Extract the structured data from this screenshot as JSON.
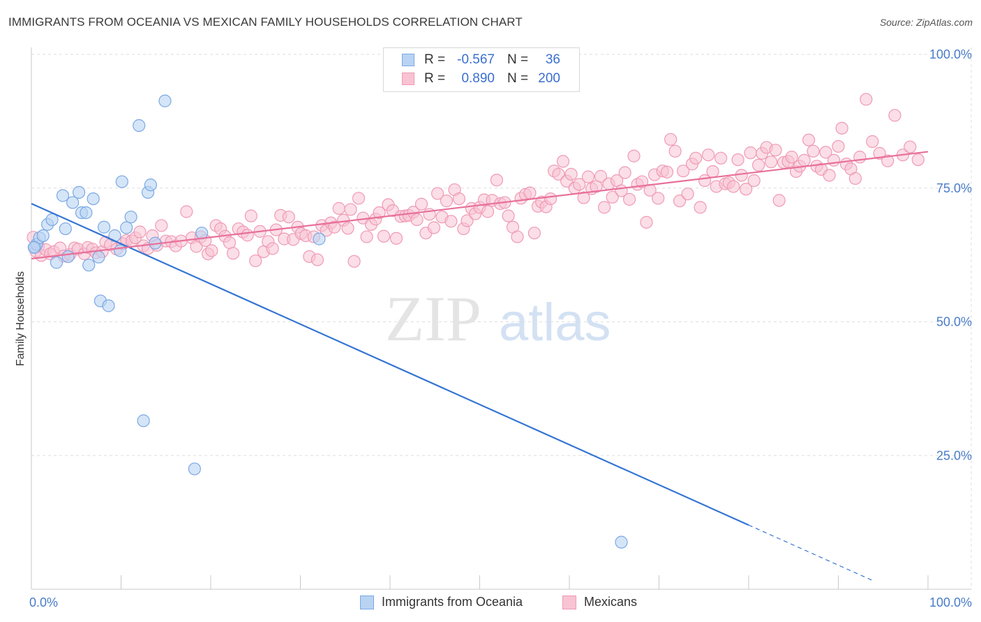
{
  "header": {
    "title": "IMMIGRANTS FROM OCEANIA VS MEXICAN FAMILY HOUSEHOLDS CORRELATION CHART",
    "source": "Source: ZipAtlas.com"
  },
  "watermark": {
    "zip": "ZIP",
    "atlas": "atlas"
  },
  "stats": {
    "oceania": {
      "r_label": "R =",
      "r_value": "-0.567",
      "n_label": "N =",
      "n_value": "36"
    },
    "mexicans": {
      "r_label": "R =",
      "r_value": "0.890",
      "n_label": "N =",
      "n_value": "200"
    }
  },
  "legend": {
    "oceania": "Immigrants from Oceania",
    "mexicans": "Mexicans"
  },
  "colors": {
    "oceania_fill": "#b9d3f3",
    "oceania_stroke": "#7aa8e4",
    "oceania_line": "#3575d3",
    "mexicans_fill": "#f8c3d3",
    "mexicans_stroke": "#ef9ab5",
    "mexicans_line": "#e8709a",
    "tick_text": "#4a7cc7",
    "grid": "#dedede"
  },
  "chart_data": {
    "type": "scatter",
    "title": "IMMIGRANTS FROM OCEANIA VS MEXICAN FAMILY HOUSEHOLDS CORRELATION CHART",
    "xlabel": "",
    "ylabel": "Family Households",
    "xlim": [
      0,
      100
    ],
    "ylim": [
      0,
      100
    ],
    "x_tick_labels": [
      "0.0%",
      "100.0%"
    ],
    "y_tick_labels": [
      "25.0%",
      "50.0%",
      "75.0%",
      "100.0%"
    ],
    "y_ticks": [
      25,
      50,
      75,
      100
    ],
    "grid": true,
    "legend_position": "bottom-center",
    "series": [
      {
        "name": "Immigrants from Oceania",
        "r": -0.567,
        "n": 36,
        "trend": {
          "x0": 0,
          "y0": 72.1,
          "x1": 80,
          "y1": 12.0,
          "dash_to_x": 94,
          "dash_to_y": 1.5
        },
        "points": [
          [
            0.4,
            64.0
          ],
          [
            0.6,
            64.5
          ],
          [
            0.9,
            65.7
          ],
          [
            1.3,
            66.1
          ],
          [
            1.8,
            68.2
          ],
          [
            2.3,
            69.1
          ],
          [
            2.8,
            61.1
          ],
          [
            3.5,
            73.6
          ],
          [
            3.8,
            67.4
          ],
          [
            4.1,
            62.2
          ],
          [
            4.6,
            72.3
          ],
          [
            5.3,
            74.2
          ],
          [
            5.6,
            70.4
          ],
          [
            6.1,
            70.4
          ],
          [
            6.4,
            60.6
          ],
          [
            6.9,
            73.0
          ],
          [
            7.5,
            62.1
          ],
          [
            7.7,
            53.9
          ],
          [
            8.1,
            67.7
          ],
          [
            8.6,
            53.0
          ],
          [
            9.3,
            66.1
          ],
          [
            9.9,
            63.3
          ],
          [
            10.1,
            76.2
          ],
          [
            10.6,
            67.6
          ],
          [
            11.1,
            69.6
          ],
          [
            12.0,
            86.7
          ],
          [
            12.5,
            31.5
          ],
          [
            13.0,
            74.2
          ],
          [
            13.3,
            75.6
          ],
          [
            13.8,
            64.7
          ],
          [
            14.9,
            91.3
          ],
          [
            18.2,
            22.5
          ],
          [
            19.0,
            66.6
          ],
          [
            32.1,
            65.5
          ],
          [
            65.8,
            8.8
          ],
          [
            0.3,
            63.9
          ]
        ]
      },
      {
        "name": "Mexicans",
        "r": 0.89,
        "n": 200,
        "trend": {
          "x0": 0,
          "y0": 61.8,
          "x1": 100,
          "y1": 81.8
        },
        "points": [
          [
            0.2,
            65.8
          ],
          [
            0.5,
            63.2
          ],
          [
            0.8,
            64.1
          ],
          [
            1.1,
            62.4
          ],
          [
            1.6,
            63.5
          ],
          [
            2.1,
            62.7
          ],
          [
            2.5,
            63.1
          ],
          [
            3.2,
            63.8
          ],
          [
            3.6,
            62.3
          ],
          [
            4.3,
            62.6
          ],
          [
            4.8,
            63.8
          ],
          [
            5.2,
            63.6
          ],
          [
            5.9,
            62.7
          ],
          [
            6.3,
            63.9
          ],
          [
            6.8,
            63.6
          ],
          [
            7.2,
            62.9
          ],
          [
            7.9,
            63.1
          ],
          [
            8.3,
            64.9
          ],
          [
            8.8,
            64.4
          ],
          [
            9.5,
            63.6
          ],
          [
            10.2,
            64.6
          ],
          [
            10.6,
            65.2
          ],
          [
            11.2,
            65.1
          ],
          [
            11.6,
            65.7
          ],
          [
            12.1,
            66.8
          ],
          [
            12.5,
            64.2
          ],
          [
            13.0,
            63.7
          ],
          [
            13.5,
            66.1
          ],
          [
            14.0,
            64.3
          ],
          [
            14.5,
            68.0
          ],
          [
            15.0,
            65.1
          ],
          [
            15.6,
            65.0
          ],
          [
            16.1,
            64.2
          ],
          [
            16.7,
            65.1
          ],
          [
            17.3,
            70.6
          ],
          [
            17.9,
            65.7
          ],
          [
            18.4,
            64.1
          ],
          [
            18.9,
            65.9
          ],
          [
            19.4,
            65.2
          ],
          [
            19.7,
            62.7
          ],
          [
            20.1,
            63.3
          ],
          [
            20.6,
            68.0
          ],
          [
            21.1,
            67.4
          ],
          [
            21.6,
            66.0
          ],
          [
            22.1,
            64.8
          ],
          [
            22.5,
            62.8
          ],
          [
            23.1,
            67.4
          ],
          [
            23.6,
            66.8
          ],
          [
            24.1,
            66.2
          ],
          [
            24.5,
            69.8
          ],
          [
            25.0,
            61.4
          ],
          [
            25.5,
            66.9
          ],
          [
            25.9,
            63.1
          ],
          [
            26.4,
            65.0
          ],
          [
            26.9,
            63.7
          ],
          [
            27.3,
            67.2
          ],
          [
            27.8,
            69.9
          ],
          [
            28.2,
            65.5
          ],
          [
            28.7,
            69.6
          ],
          [
            29.2,
            65.4
          ],
          [
            29.7,
            67.7
          ],
          [
            30.1,
            66.5
          ],
          [
            30.6,
            66.1
          ],
          [
            31.0,
            62.2
          ],
          [
            31.5,
            65.9
          ],
          [
            31.9,
            61.6
          ],
          [
            32.4,
            68.0
          ],
          [
            32.9,
            67.1
          ],
          [
            33.4,
            68.5
          ],
          [
            33.8,
            67.7
          ],
          [
            34.3,
            71.2
          ],
          [
            34.8,
            69.0
          ],
          [
            35.3,
            67.5
          ],
          [
            35.6,
            71.0
          ],
          [
            36.0,
            61.3
          ],
          [
            36.5,
            73.1
          ],
          [
            37.0,
            69.4
          ],
          [
            37.4,
            65.9
          ],
          [
            37.9,
            68.2
          ],
          [
            38.4,
            69.2
          ],
          [
            38.8,
            70.4
          ],
          [
            39.3,
            66.0
          ],
          [
            39.8,
            71.9
          ],
          [
            40.3,
            70.8
          ],
          [
            40.7,
            65.6
          ],
          [
            41.2,
            69.7
          ],
          [
            41.7,
            69.8
          ],
          [
            42.1,
            69.9
          ],
          [
            42.6,
            70.5
          ],
          [
            43.0,
            69.1
          ],
          [
            43.5,
            72.0
          ],
          [
            44.0,
            66.6
          ],
          [
            44.4,
            70.1
          ],
          [
            44.9,
            67.6
          ],
          [
            45.3,
            74.0
          ],
          [
            45.8,
            69.6
          ],
          [
            46.3,
            72.6
          ],
          [
            46.8,
            68.8
          ],
          [
            47.2,
            74.7
          ],
          [
            47.7,
            73.0
          ],
          [
            48.2,
            67.4
          ],
          [
            48.6,
            68.9
          ],
          [
            49.1,
            71.2
          ],
          [
            49.5,
            70.2
          ],
          [
            50.0,
            71.4
          ],
          [
            50.5,
            72.8
          ],
          [
            50.9,
            70.6
          ],
          [
            51.4,
            72.7
          ],
          [
            51.9,
            76.5
          ],
          [
            52.3,
            72.1
          ],
          [
            52.8,
            72.3
          ],
          [
            53.2,
            69.8
          ],
          [
            53.7,
            67.7
          ],
          [
            54.2,
            65.9
          ],
          [
            54.6,
            73.1
          ],
          [
            55.1,
            73.8
          ],
          [
            55.6,
            74.1
          ],
          [
            56.1,
            66.6
          ],
          [
            56.5,
            71.6
          ],
          [
            56.9,
            72.4
          ],
          [
            57.4,
            71.5
          ],
          [
            57.9,
            73.0
          ],
          [
            58.3,
            78.2
          ],
          [
            58.8,
            77.6
          ],
          [
            59.3,
            80.0
          ],
          [
            59.7,
            76.3
          ],
          [
            60.2,
            77.6
          ],
          [
            60.6,
            75.0
          ],
          [
            61.1,
            75.7
          ],
          [
            61.6,
            73.2
          ],
          [
            62.1,
            77.1
          ],
          [
            62.5,
            74.9
          ],
          [
            63.0,
            75.3
          ],
          [
            63.5,
            77.2
          ],
          [
            63.9,
            71.4
          ],
          [
            64.4,
            75.8
          ],
          [
            64.8,
            73.3
          ],
          [
            65.3,
            76.4
          ],
          [
            65.8,
            74.5
          ],
          [
            66.2,
            77.9
          ],
          [
            66.7,
            72.9
          ],
          [
            67.2,
            81.0
          ],
          [
            67.6,
            75.7
          ],
          [
            68.1,
            76.2
          ],
          [
            68.6,
            68.6
          ],
          [
            69.0,
            74.6
          ],
          [
            69.5,
            77.5
          ],
          [
            69.9,
            73.1
          ],
          [
            70.4,
            78.2
          ],
          [
            70.9,
            78.0
          ],
          [
            71.3,
            84.1
          ],
          [
            71.8,
            81.9
          ],
          [
            72.3,
            72.6
          ],
          [
            72.7,
            78.2
          ],
          [
            73.2,
            73.9
          ],
          [
            73.7,
            79.5
          ],
          [
            74.1,
            80.6
          ],
          [
            74.6,
            71.4
          ],
          [
            75.1,
            76.4
          ],
          [
            75.5,
            81.2
          ],
          [
            76.0,
            78.1
          ],
          [
            76.4,
            75.3
          ],
          [
            76.9,
            80.6
          ],
          [
            77.4,
            75.8
          ],
          [
            77.8,
            76.0
          ],
          [
            78.3,
            75.3
          ],
          [
            78.8,
            80.3
          ],
          [
            79.2,
            77.4
          ],
          [
            79.7,
            74.8
          ],
          [
            80.2,
            81.6
          ],
          [
            80.6,
            76.4
          ],
          [
            81.1,
            79.3
          ],
          [
            81.5,
            81.5
          ],
          [
            82.0,
            82.6
          ],
          [
            82.5,
            79.9
          ],
          [
            83.0,
            82.1
          ],
          [
            83.4,
            72.7
          ],
          [
            83.9,
            79.8
          ],
          [
            84.4,
            80.0
          ],
          [
            84.8,
            80.8
          ],
          [
            85.3,
            78.1
          ],
          [
            85.7,
            79.1
          ],
          [
            86.2,
            80.2
          ],
          [
            86.7,
            84.0
          ],
          [
            87.2,
            81.9
          ],
          [
            87.6,
            79.1
          ],
          [
            88.1,
            78.5
          ],
          [
            88.6,
            81.7
          ],
          [
            89.0,
            77.4
          ],
          [
            89.5,
            80.2
          ],
          [
            90.0,
            82.8
          ],
          [
            90.4,
            86.2
          ],
          [
            90.9,
            79.5
          ],
          [
            91.4,
            78.6
          ],
          [
            91.9,
            76.8
          ],
          [
            92.4,
            80.8
          ],
          [
            93.1,
            91.6
          ],
          [
            93.8,
            83.7
          ],
          [
            94.6,
            81.5
          ],
          [
            95.5,
            80.1
          ],
          [
            96.3,
            88.6
          ],
          [
            97.2,
            81.2
          ],
          [
            98.0,
            82.7
          ],
          [
            98.9,
            80.3
          ]
        ]
      }
    ]
  }
}
